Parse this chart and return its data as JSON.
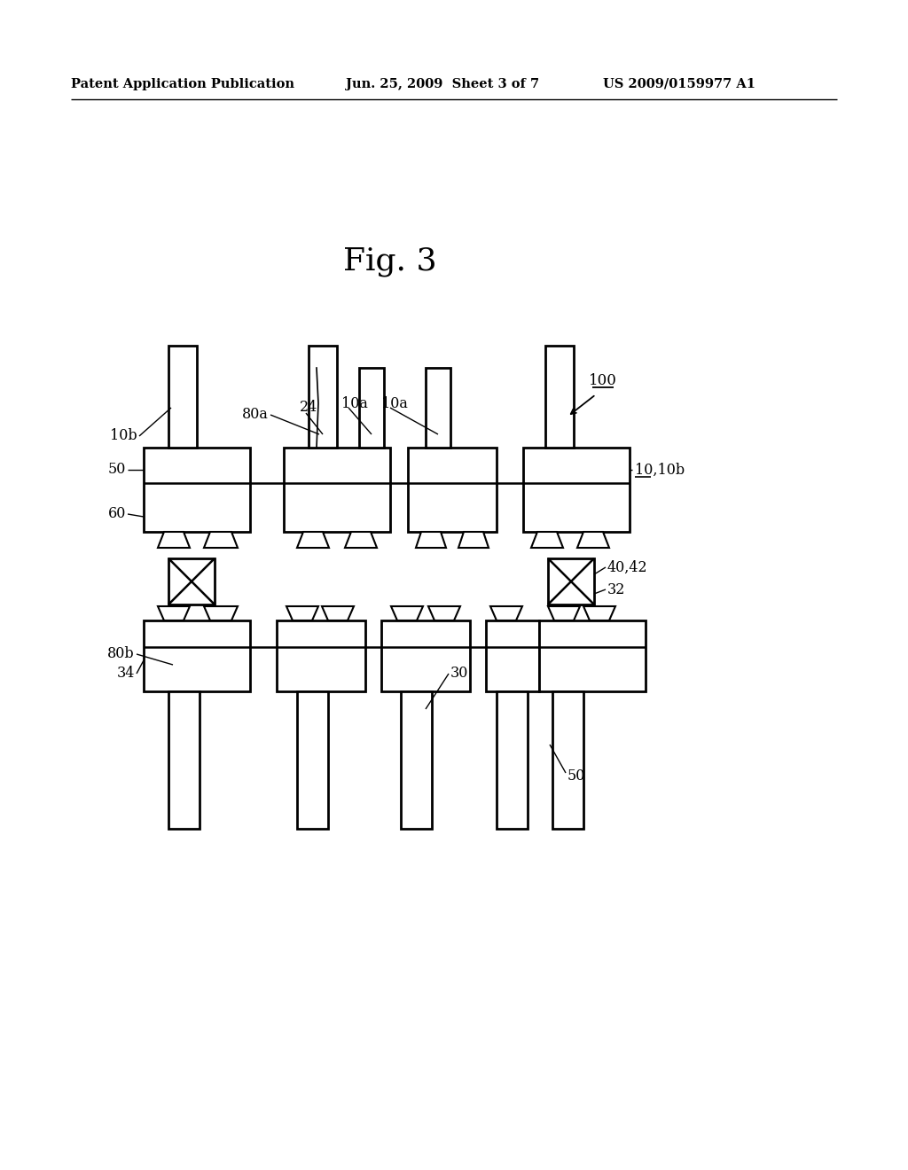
{
  "header_left": "Patent Application Publication",
  "header_mid": "Jun. 25, 2009  Sheet 3 of 7",
  "header_right": "US 2009/0159977 A1",
  "fig_label": "Fig. 3",
  "bg_color": "#ffffff"
}
